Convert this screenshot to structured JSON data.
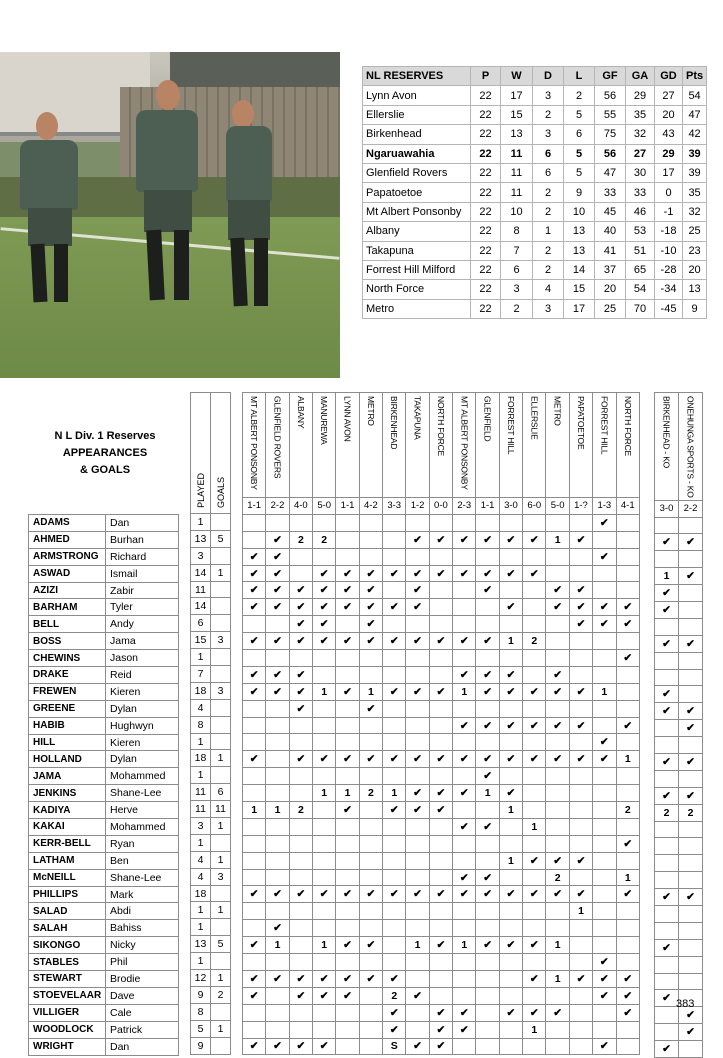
{
  "league_table": {
    "headers": [
      "NL RESERVES",
      "P",
      "W",
      "D",
      "L",
      "GF",
      "GA",
      "GD",
      "Pts"
    ],
    "highlight_team": "Ngaruawahia",
    "rows": [
      [
        "Lynn Avon",
        "22",
        "17",
        "3",
        "2",
        "56",
        "29",
        "27",
        "54"
      ],
      [
        "Ellerslie",
        "22",
        "15",
        "2",
        "5",
        "55",
        "35",
        "20",
        "47"
      ],
      [
        "Birkenhead",
        "22",
        "13",
        "3",
        "6",
        "75",
        "32",
        "43",
        "42"
      ],
      [
        "Ngaruawahia",
        "22",
        "11",
        "6",
        "5",
        "56",
        "27",
        "29",
        "39"
      ],
      [
        "Glenfield Rovers",
        "22",
        "11",
        "6",
        "5",
        "47",
        "30",
        "17",
        "39"
      ],
      [
        "Papatoetoe",
        "22",
        "11",
        "2",
        "9",
        "33",
        "33",
        "0",
        "35"
      ],
      [
        "Mt Albert Ponsonby",
        "22",
        "10",
        "2",
        "10",
        "45",
        "46",
        "-1",
        "32"
      ],
      [
        "Albany",
        "22",
        "8",
        "1",
        "13",
        "40",
        "53",
        "-18",
        "25"
      ],
      [
        "Takapuna",
        "22",
        "7",
        "2",
        "13",
        "41",
        "51",
        "-10",
        "23"
      ],
      [
        "Forrest Hill Milford",
        "22",
        "6",
        "2",
        "14",
        "37",
        "65",
        "-28",
        "20"
      ],
      [
        "North Force",
        "22",
        "3",
        "4",
        "15",
        "20",
        "54",
        "-34",
        "13"
      ],
      [
        "Metro",
        "22",
        "2",
        "3",
        "17",
        "25",
        "70",
        "-45",
        "9"
      ]
    ]
  },
  "appearances": {
    "title_lines": [
      "N L Div. 1 Reserves",
      "APPEARANCES",
      "& GOALS"
    ],
    "played_label": "PLAYED",
    "goals_label": "GOALS",
    "matches": [
      {
        "opponent": "MT ALBERT PONSONBY",
        "score": "1-1"
      },
      {
        "opponent": "GLENFIELD ROVERS",
        "score": "2-2"
      },
      {
        "opponent": "ALBANY",
        "score": "4-0"
      },
      {
        "opponent": "MANUREWA",
        "score": "5-0"
      },
      {
        "opponent": "LYNN AVON",
        "score": "1-1"
      },
      {
        "opponent": "METRO",
        "score": "4-2"
      },
      {
        "opponent": "BIRKENHEAD",
        "score": "3-3"
      },
      {
        "opponent": "TAKAPUNA",
        "score": "1-2"
      },
      {
        "opponent": "NORTH FORCE",
        "score": "0-0"
      },
      {
        "opponent": "MT ALBERT PONSONBY",
        "score": "2-3"
      },
      {
        "opponent": "GLENFIELD",
        "score": "1-1"
      },
      {
        "opponent": "FORREST HILL",
        "score": "3-0"
      },
      {
        "opponent": "ELLERSLIE",
        "score": "6-0"
      },
      {
        "opponent": "METRO",
        "score": "5-0"
      },
      {
        "opponent": "PAPATOETOE",
        "score": "1-?"
      },
      {
        "opponent": "FORREST HILL",
        "score": "1-3"
      },
      {
        "opponent": "NORTH FORCE",
        "score": "4-1"
      }
    ],
    "ko_matches": [
      {
        "opponent": "BIRKENHEAD - KO",
        "score": "3-0"
      },
      {
        "opponent": "ONEHUNGA SPORTS - KO",
        "score": "2-2"
      }
    ],
    "players": [
      {
        "surname": "ADAMS",
        "first": "Dan",
        "played": "1",
        "goals": "",
        "m": [
          "",
          "",
          "",
          "",
          "",
          "",
          "",
          "",
          "",
          "",
          "",
          "",
          "",
          "",
          "",
          "✔",
          ""
        ],
        "ko": [
          "",
          ""
        ]
      },
      {
        "surname": "AHMED",
        "first": "Burhan",
        "played": "13",
        "goals": "5",
        "m": [
          "",
          "✔",
          "2",
          "2",
          "",
          "",
          "",
          "✔",
          "✔",
          "✔",
          "✔",
          "✔",
          "✔",
          "1",
          "✔",
          "",
          ""
        ],
        "ko": [
          "✔",
          "✔"
        ]
      },
      {
        "surname": "ARMSTRONG",
        "first": "Richard",
        "played": "3",
        "goals": "",
        "m": [
          "✔",
          "✔",
          "",
          "",
          "",
          "",
          "",
          "",
          "",
          "",
          "",
          "",
          "",
          "",
          "",
          "✔",
          ""
        ],
        "ko": [
          "",
          ""
        ]
      },
      {
        "surname": "ASWAD",
        "first": "Ismail",
        "played": "14",
        "goals": "1",
        "m": [
          "✔",
          "✔",
          "",
          "✔",
          "✔",
          "✔",
          "✔",
          "✔",
          "✔",
          "✔",
          "✔",
          "✔",
          "✔",
          "",
          "",
          "",
          ""
        ],
        "ko": [
          "1",
          "✔"
        ]
      },
      {
        "surname": "AZIZI",
        "first": "Zabir",
        "played": "11",
        "goals": "",
        "m": [
          "✔",
          "✔",
          "✔",
          "✔",
          "✔",
          "✔",
          "",
          "✔",
          "",
          "",
          "✔",
          "",
          "",
          "✔",
          "✔",
          "",
          ""
        ],
        "ko": [
          "✔",
          ""
        ]
      },
      {
        "surname": "BARHAM",
        "first": "Tyler",
        "played": "14",
        "goals": "",
        "m": [
          "✔",
          "✔",
          "✔",
          "✔",
          "✔",
          "✔",
          "✔",
          "✔",
          "",
          "",
          "",
          "✔",
          "",
          "✔",
          "✔",
          "✔",
          "✔"
        ],
        "ko": [
          "✔",
          ""
        ]
      },
      {
        "surname": "BELL",
        "first": "Andy",
        "played": "6",
        "goals": "",
        "m": [
          "",
          "",
          "✔",
          "✔",
          "",
          "✔",
          "",
          "",
          "",
          "",
          "",
          "",
          "",
          "",
          "✔",
          "✔",
          "✔"
        ],
        "ko": [
          "",
          ""
        ]
      },
      {
        "surname": "BOSS",
        "first": "Jama",
        "played": "15",
        "goals": "3",
        "m": [
          "✔",
          "✔",
          "✔",
          "✔",
          "✔",
          "✔",
          "✔",
          "✔",
          "✔",
          "✔",
          "✔",
          "1",
          "2",
          "",
          "",
          "",
          ""
        ],
        "ko": [
          "✔",
          "✔"
        ]
      },
      {
        "surname": "CHEWINS",
        "first": "Jason",
        "played": "1",
        "goals": "",
        "m": [
          "",
          "",
          "",
          "",
          "",
          "",
          "",
          "",
          "",
          "",
          "",
          "",
          "",
          "",
          "",
          "",
          "✔"
        ],
        "ko": [
          "",
          ""
        ]
      },
      {
        "surname": "DRAKE",
        "first": "Reid",
        "played": "7",
        "goals": "",
        "m": [
          "✔",
          "✔",
          "✔",
          "",
          "",
          "",
          "",
          "",
          "",
          "✔",
          "✔",
          "✔",
          "",
          "✔",
          "",
          "",
          ""
        ],
        "ko": [
          "",
          ""
        ]
      },
      {
        "surname": "FREWEN",
        "first": "Kieren",
        "played": "18",
        "goals": "3",
        "m": [
          "✔",
          "✔",
          "✔",
          "1",
          "✔",
          "1",
          "✔",
          "✔",
          "✔",
          "1",
          "✔",
          "✔",
          "✔",
          "✔",
          "✔",
          "1",
          ""
        ],
        "ko": [
          "✔",
          ""
        ]
      },
      {
        "surname": "GREENE",
        "first": "Dylan",
        "played": "4",
        "goals": "",
        "m": [
          "",
          "",
          "✔",
          "",
          "",
          "✔",
          "",
          "",
          "",
          "",
          "",
          "",
          "",
          "",
          "",
          "",
          ""
        ],
        "ko": [
          "✔",
          "✔"
        ]
      },
      {
        "surname": "HABIB",
        "first": "Hughwyn",
        "played": "8",
        "goals": "",
        "m": [
          "",
          "",
          "",
          "",
          "",
          "",
          "",
          "",
          "",
          "✔",
          "✔",
          "✔",
          "✔",
          "✔",
          "✔",
          "",
          "✔"
        ],
        "ko": [
          "",
          "✔"
        ]
      },
      {
        "surname": "HILL",
        "first": "Kieren",
        "played": "1",
        "goals": "",
        "m": [
          "",
          "",
          "",
          "",
          "",
          "",
          "",
          "",
          "",
          "",
          "",
          "",
          "",
          "",
          "",
          "✔",
          ""
        ],
        "ko": [
          "",
          ""
        ]
      },
      {
        "surname": "HOLLAND",
        "first": "Dylan",
        "played": "18",
        "goals": "1",
        "m": [
          "✔",
          "",
          "✔",
          "✔",
          "✔",
          "✔",
          "✔",
          "✔",
          "✔",
          "✔",
          "✔",
          "✔",
          "✔",
          "✔",
          "✔",
          "✔",
          "1"
        ],
        "ko": [
          "✔",
          "✔"
        ]
      },
      {
        "surname": "JAMA",
        "first": "Mohammed",
        "played": "1",
        "goals": "",
        "m": [
          "",
          "",
          "",
          "",
          "",
          "",
          "",
          "",
          "",
          "",
          "✔",
          "",
          "",
          "",
          "",
          "",
          ""
        ],
        "ko": [
          "",
          ""
        ]
      },
      {
        "surname": "JENKINS",
        "first": "Shane-Lee",
        "played": "11",
        "goals": "6",
        "m": [
          "",
          "",
          "",
          "1",
          "1",
          "2",
          "1",
          "✔",
          "✔",
          "✔",
          "1",
          "✔",
          "",
          "",
          "",
          "",
          ""
        ],
        "ko": [
          "✔",
          "✔"
        ]
      },
      {
        "surname": "KADIYA",
        "first": "Herve",
        "played": "11",
        "goals": "11",
        "m": [
          "1",
          "1",
          "2",
          "",
          "✔",
          "",
          "✔",
          "✔",
          "✔",
          "",
          "",
          "1",
          "",
          "",
          "",
          "",
          "2"
        ],
        "ko": [
          "2",
          "2"
        ]
      },
      {
        "surname": "KAKAI",
        "first": "Mohammed",
        "played": "3",
        "goals": "1",
        "m": [
          "",
          "",
          "",
          "",
          "",
          "",
          "",
          "",
          "",
          "✔",
          "✔",
          "",
          "1",
          "",
          "",
          "",
          ""
        ],
        "ko": [
          "",
          ""
        ]
      },
      {
        "surname": "KERR-BELL",
        "first": "Ryan",
        "played": "1",
        "goals": "",
        "m": [
          "",
          "",
          "",
          "",
          "",
          "",
          "",
          "",
          "",
          "",
          "",
          "",
          "",
          "",
          "",
          "",
          "✔"
        ],
        "ko": [
          "",
          ""
        ]
      },
      {
        "surname": "LATHAM",
        "first": "Ben",
        "played": "4",
        "goals": "1",
        "m": [
          "",
          "",
          "",
          "",
          "",
          "",
          "",
          "",
          "",
          "",
          "",
          "1",
          "✔",
          "✔",
          "✔",
          "",
          ""
        ],
        "ko": [
          "",
          ""
        ]
      },
      {
        "surname": "McNEILL",
        "first": "Shane-Lee",
        "played": "4",
        "goals": "3",
        "m": [
          "",
          "",
          "",
          "",
          "",
          "",
          "",
          "",
          "",
          "✔",
          "✔",
          "",
          "",
          "2",
          "",
          "",
          "1"
        ],
        "ko": [
          "",
          ""
        ]
      },
      {
        "surname": "PHILLIPS",
        "first": "Mark",
        "played": "18",
        "goals": "",
        "m": [
          "✔",
          "✔",
          "✔",
          "✔",
          "✔",
          "✔",
          "✔",
          "✔",
          "✔",
          "✔",
          "✔",
          "✔",
          "✔",
          "✔",
          "✔",
          "",
          "✔"
        ],
        "ko": [
          "✔",
          "✔"
        ]
      },
      {
        "surname": "SALAD",
        "first": "Abdi",
        "played": "1",
        "goals": "1",
        "m": [
          "",
          "",
          "",
          "",
          "",
          "",
          "",
          "",
          "",
          "",
          "",
          "",
          "",
          "",
          "1",
          "",
          ""
        ],
        "ko": [
          "",
          ""
        ]
      },
      {
        "surname": "SALAH",
        "first": "Bahiss",
        "played": "1",
        "goals": "",
        "m": [
          "",
          "✔",
          "",
          "",
          "",
          "",
          "",
          "",
          "",
          "",
          "",
          "",
          "",
          "",
          "",
          "",
          ""
        ],
        "ko": [
          "",
          ""
        ]
      },
      {
        "surname": "SIKONGO",
        "first": "Nicky",
        "played": "13",
        "goals": "5",
        "m": [
          "✔",
          "1",
          "",
          "1",
          "✔",
          "✔",
          "",
          "1",
          "✔",
          "1",
          "✔",
          "✔",
          "✔",
          "1",
          "",
          "",
          ""
        ],
        "ko": [
          "✔",
          ""
        ]
      },
      {
        "surname": "STABLES",
        "first": "Phil",
        "played": "1",
        "goals": "",
        "m": [
          "",
          "",
          "",
          "",
          "",
          "",
          "",
          "",
          "",
          "",
          "",
          "",
          "",
          "",
          "",
          "✔",
          ""
        ],
        "ko": [
          "",
          ""
        ]
      },
      {
        "surname": "STEWART",
        "first": "Brodie",
        "played": "12",
        "goals": "1",
        "m": [
          "✔",
          "✔",
          "✔",
          "✔",
          "✔",
          "✔",
          "✔",
          "",
          "",
          "",
          "",
          "",
          "✔",
          "1",
          "✔",
          "✔",
          "✔"
        ],
        "ko": [
          "",
          ""
        ]
      },
      {
        "surname": "STOEVELAAR",
        "first": "Dave",
        "played": "9",
        "goals": "2",
        "m": [
          "✔",
          "",
          "✔",
          "✔",
          "✔",
          "",
          "2",
          "✔",
          "",
          "",
          "",
          "",
          "",
          "",
          "",
          "✔",
          "✔"
        ],
        "ko": [
          "✔",
          ""
        ]
      },
      {
        "surname": "VILLIGER",
        "first": "Cale",
        "played": "8",
        "goals": "",
        "m": [
          "",
          "",
          "",
          "",
          "",
          "",
          "✔",
          "",
          "✔",
          "✔",
          "",
          "✔",
          "✔",
          "✔",
          "",
          "",
          "✔"
        ],
        "ko": [
          "",
          "✔"
        ]
      },
      {
        "surname": "WOODLOCK",
        "first": "Patrick",
        "played": "5",
        "goals": "1",
        "m": [
          "",
          "",
          "",
          "",
          "",
          "",
          "✔",
          "",
          "✔",
          "✔",
          "",
          "",
          "1",
          "",
          "",
          "",
          ""
        ],
        "ko": [
          "",
          "✔"
        ]
      },
      {
        "surname": "WRIGHT",
        "first": "Dan",
        "played": "9",
        "goals": "",
        "m": [
          "✔",
          "✔",
          "✔",
          "✔",
          "",
          "",
          "S",
          "✔",
          "✔",
          "",
          "",
          "",
          "",
          "",
          "",
          "✔",
          ""
        ],
        "ko": [
          "✔",
          ""
        ]
      }
    ]
  },
  "page_number": "383"
}
